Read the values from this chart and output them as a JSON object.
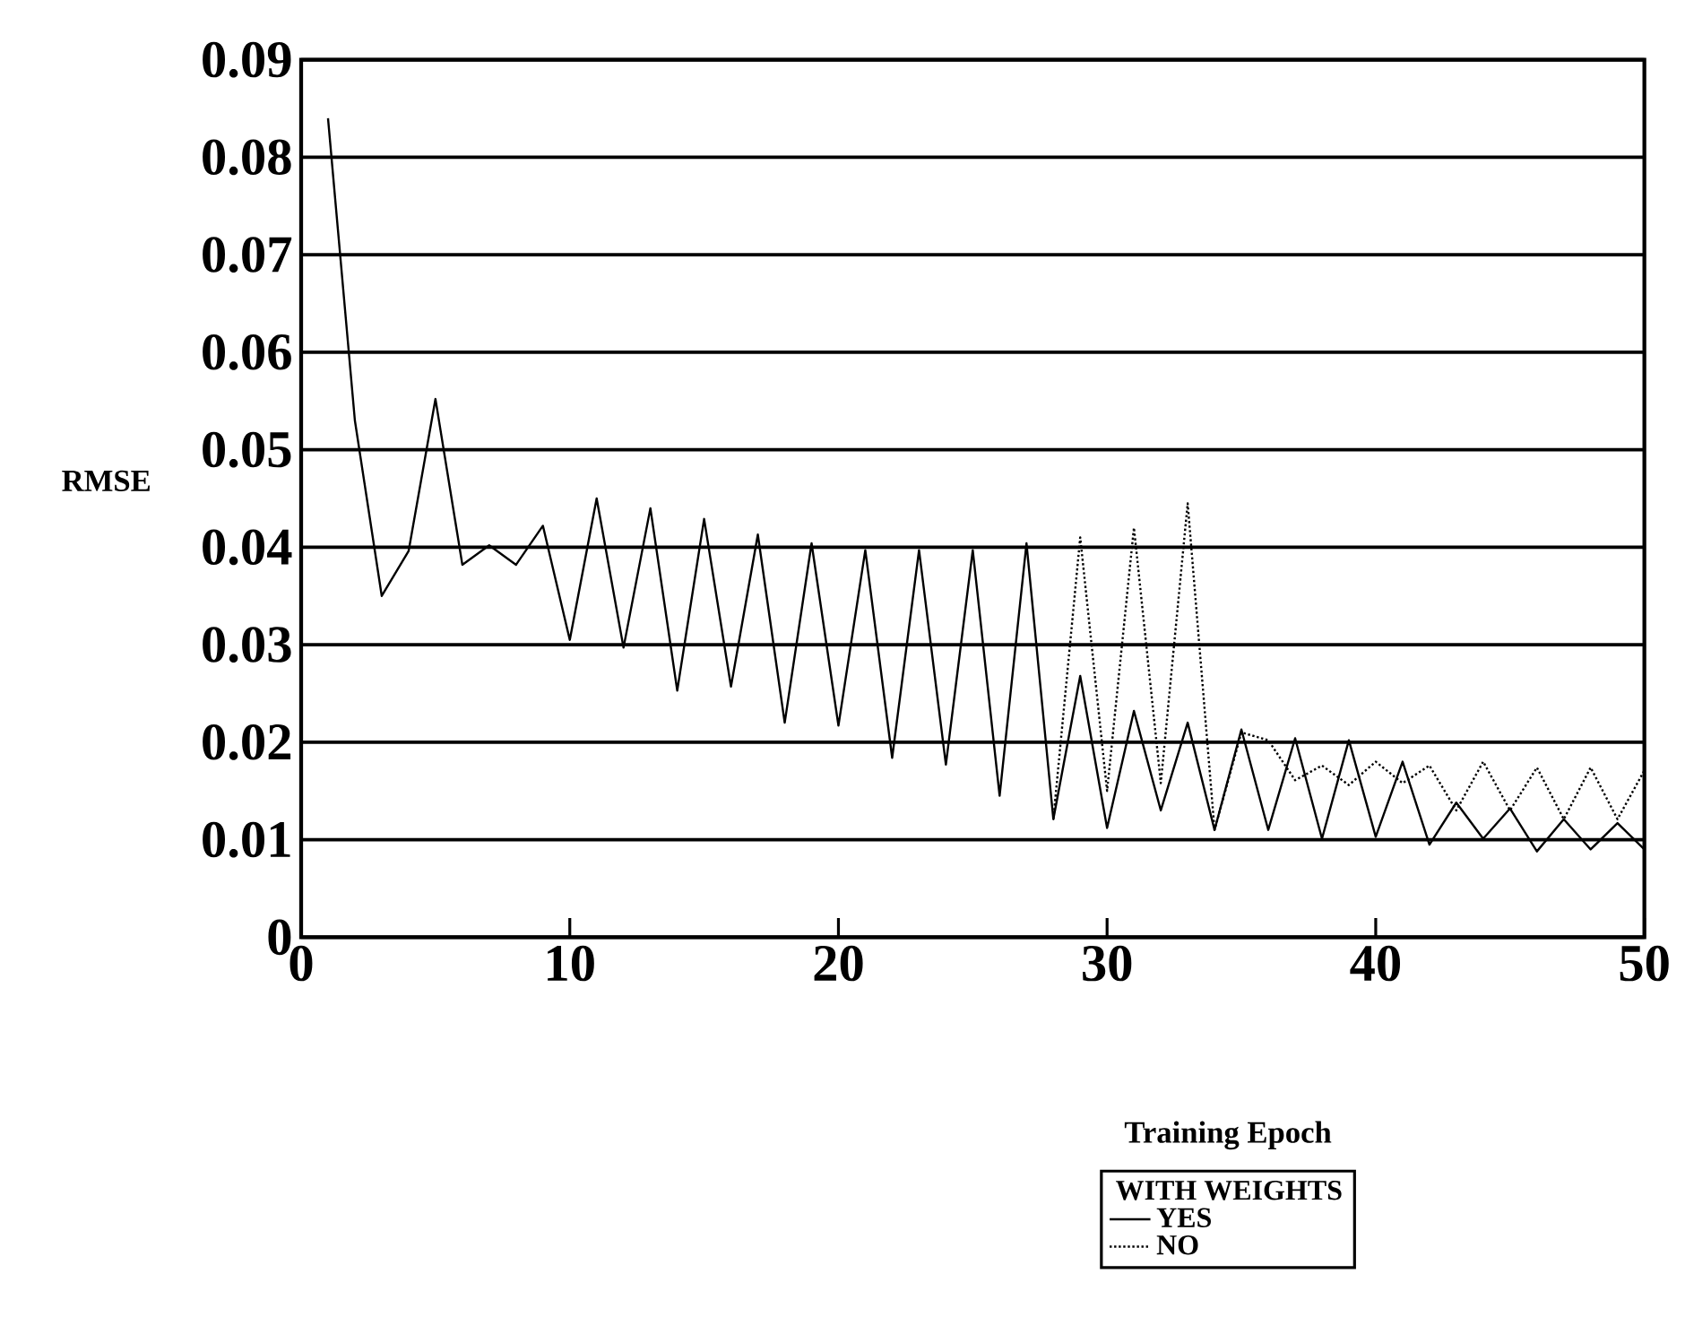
{
  "chart_data": {
    "type": "line",
    "xlabel": "Training Epoch",
    "ylabel": "RMSE",
    "legend_title": "WITH WEIGHTS",
    "legend": "bottom",
    "grid": "y",
    "marker": "none",
    "xlim": [
      0,
      50
    ],
    "xticks": [
      0,
      10,
      20,
      30,
      40,
      50
    ],
    "ylim": [
      0,
      0.09
    ],
    "yticks": [
      0,
      0.01,
      0.02,
      0.03,
      0.04,
      0.05,
      0.06,
      0.07,
      0.08,
      0.09
    ],
    "series": [
      {
        "name": "YES",
        "color": "#000000",
        "line_style": "solid",
        "x": [
          1,
          2,
          3,
          4,
          5,
          6,
          7,
          8,
          9,
          10,
          11,
          12,
          13,
          14,
          15,
          16,
          17,
          18,
          19,
          20,
          21,
          22,
          23,
          24,
          25,
          26,
          27,
          28,
          29,
          30,
          31,
          32,
          33,
          34,
          35,
          36,
          37,
          38,
          39,
          40,
          41,
          42,
          43,
          44,
          45,
          46,
          47,
          48,
          49,
          50
        ],
        "values": [
          0.084,
          0.053,
          0.035,
          0.0396,
          0.0552,
          0.0382,
          0.0402,
          0.0382,
          0.0422,
          0.0305,
          0.045,
          0.0297,
          0.044,
          0.0253,
          0.0429,
          0.0257,
          0.0413,
          0.022,
          0.0404,
          0.0217,
          0.0397,
          0.0184,
          0.0397,
          0.0177,
          0.0397,
          0.0145,
          0.0404,
          0.0121,
          0.0268,
          0.0112,
          0.0232,
          0.013,
          0.022,
          0.011,
          0.0213,
          0.011,
          0.0204,
          0.0101,
          0.0202,
          0.0103,
          0.018,
          0.0095,
          0.0138,
          0.0101,
          0.0132,
          0.0088,
          0.0121,
          0.009,
          0.0117,
          0.009
        ]
      },
      {
        "name": "NO",
        "color": "#000000",
        "line_style": "dotted",
        "x": [
          28,
          29,
          30,
          31,
          32,
          33,
          34,
          35,
          36,
          37,
          38,
          39,
          40,
          41,
          42,
          43,
          44,
          45,
          46,
          47,
          48,
          49,
          50
        ],
        "values": [
          0.0121,
          0.041,
          0.015,
          0.042,
          0.0158,
          0.0445,
          0.011,
          0.021,
          0.0202,
          0.0161,
          0.0176,
          0.0156,
          0.018,
          0.0158,
          0.0176,
          0.013,
          0.018,
          0.013,
          0.0174,
          0.0121,
          0.0174,
          0.0121,
          0.0171
        ]
      }
    ]
  }
}
